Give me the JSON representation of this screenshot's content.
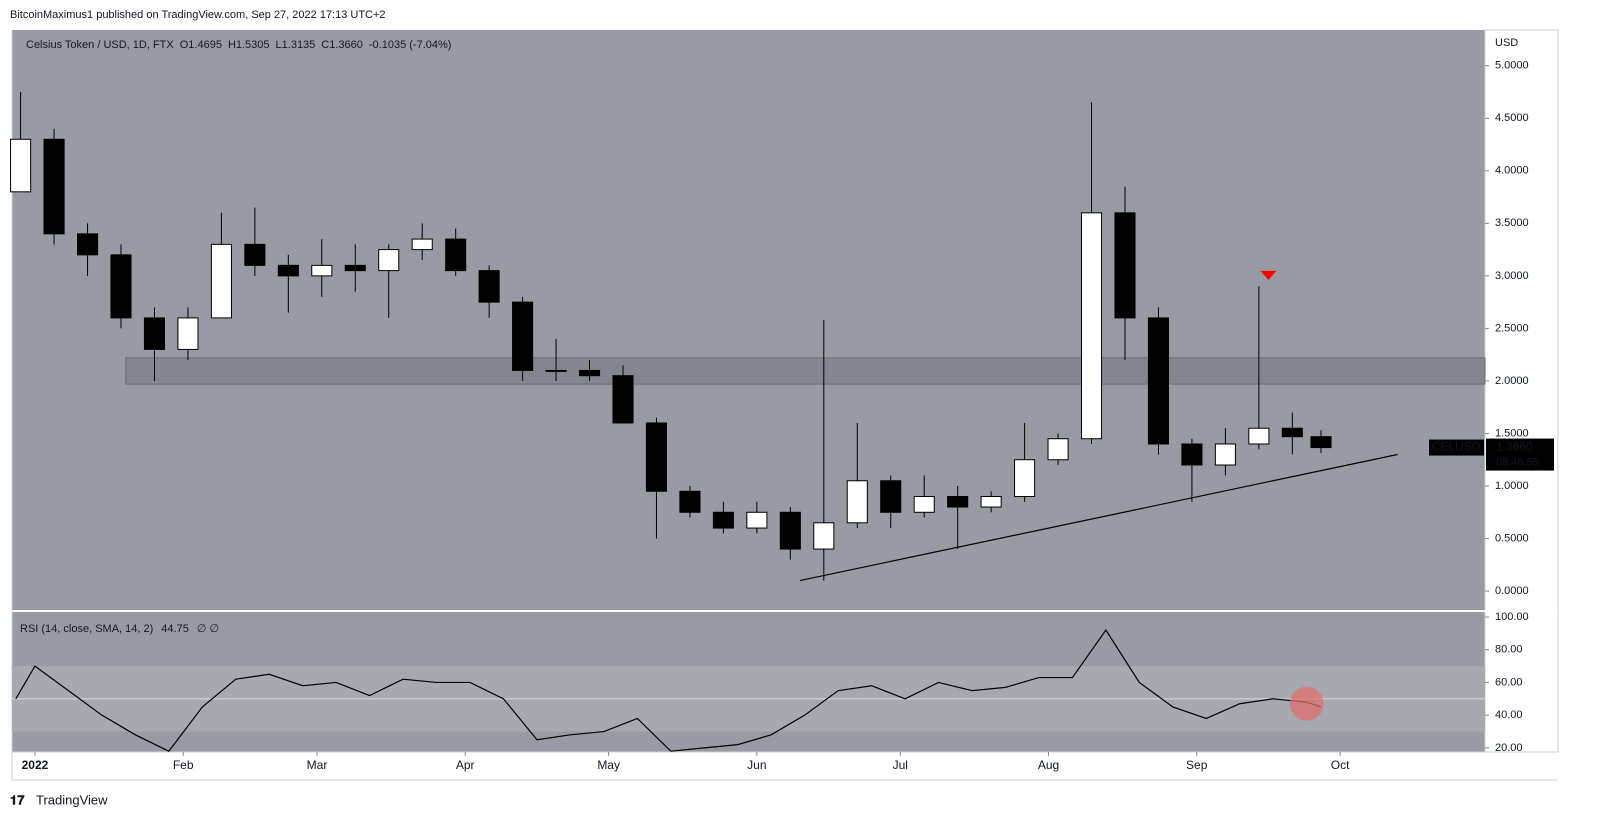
{
  "header": "BitcoinMaximus1 published on TradingView.com, Sep 27, 2022 17:13 UTC+2",
  "footer": "TradingView",
  "chart_data": [
    {
      "type": "candlestick",
      "legend": {
        "symbol": "Celsius Token / USD, 1D, FTX",
        "items": [
          "O1.4695",
          "H1.5305",
          "L1.3135",
          "C1.3660",
          "-0.1035 (-7.04%)"
        ]
      },
      "axis_label": "USD",
      "last_label": {
        "symbol": "CELUSD",
        "price": "1.3660",
        "countdown": "08:46:55"
      },
      "up_color": "#ffffff",
      "down_color": "#000000",
      "x": [
        -3,
        4,
        11,
        18,
        25,
        32,
        39,
        46,
        53,
        60,
        67,
        74,
        81,
        88,
        95,
        102,
        109,
        116,
        123,
        130,
        137,
        144,
        151,
        158,
        165,
        172,
        179,
        186,
        193,
        200,
        207,
        214,
        221,
        228,
        235,
        242,
        249,
        256,
        263,
        269
      ],
      "open": [
        3.8,
        4.3,
        3.4,
        3.2,
        2.6,
        2.3,
        2.6,
        3.3,
        3.1,
        3.0,
        3.1,
        3.05,
        3.25,
        3.35,
        3.05,
        2.75,
        2.1,
        2.1,
        2.05,
        1.6,
        0.95,
        0.75,
        0.6,
        0.75,
        0.4,
        0.65,
        1.05,
        0.75,
        0.9,
        0.8,
        0.9,
        1.25,
        1.45,
        3.6,
        2.6,
        1.4,
        1.2,
        1.4,
        1.55,
        1.4695
      ],
      "high": [
        4.75,
        4.4,
        3.5,
        3.3,
        2.7,
        2.7,
        3.6,
        3.65,
        3.2,
        3.35,
        3.3,
        3.3,
        3.5,
        3.45,
        3.1,
        2.8,
        2.4,
        2.2,
        2.15,
        1.65,
        1.0,
        0.85,
        0.85,
        0.8,
        2.58,
        1.6,
        1.1,
        1.1,
        1.0,
        0.95,
        1.6,
        1.5,
        4.65,
        3.85,
        2.7,
        1.45,
        1.55,
        2.9,
        1.7,
        1.5305
      ],
      "low": [
        3.8,
        3.3,
        3.0,
        2.5,
        2.0,
        2.2,
        2.6,
        3.0,
        2.65,
        2.8,
        2.85,
        2.6,
        3.15,
        3.0,
        2.6,
        2.0,
        2.0,
        2.0,
        1.6,
        0.5,
        0.7,
        0.55,
        0.55,
        0.3,
        0.1,
        0.6,
        0.6,
        0.7,
        0.4,
        0.75,
        0.85,
        1.2,
        1.4,
        2.2,
        1.3,
        0.85,
        1.1,
        1.35,
        1.3,
        1.3135
      ],
      "close": [
        4.3,
        3.4,
        3.2,
        2.6,
        2.3,
        2.6,
        3.3,
        3.1,
        3.0,
        3.1,
        3.05,
        3.25,
        3.35,
        3.05,
        2.75,
        2.1,
        2.1,
        2.05,
        1.6,
        0.95,
        0.75,
        0.6,
        0.75,
        0.4,
        0.65,
        1.05,
        0.75,
        0.9,
        0.8,
        0.9,
        1.25,
        1.45,
        3.6,
        2.6,
        1.4,
        1.2,
        1.4,
        1.55,
        1.4695,
        1.366
      ],
      "zone": [
        1.97,
        2.22
      ],
      "zone_start": 19,
      "trendline": {
        "x": [
          160,
          285
        ],
        "y": [
          0.1,
          1.3
        ]
      },
      "marker": {
        "x": 258,
        "y": 3.0,
        "color": "#ff0000"
      },
      "xlim": [
        -4.8,
        303.3
      ],
      "ylim": [
        -0.18,
        5.34
      ],
      "yticks": [
        {
          "value": 0,
          "label": "0.0000"
        },
        {
          "value": 0.5,
          "label": "0.5000"
        },
        {
          "value": 1,
          "label": "1.0000"
        },
        {
          "value": 1.5,
          "label": "1.5000"
        },
        {
          "value": 2,
          "label": "2.0000"
        },
        {
          "value": 2.5,
          "label": "2.5000"
        },
        {
          "value": 3,
          "label": "3.0000"
        },
        {
          "value": 3.5,
          "label": "3.5000"
        },
        {
          "value": 4,
          "label": "4.0000"
        },
        {
          "value": 4.5,
          "label": "4.5000"
        },
        {
          "value": 5,
          "label": "5.0000"
        }
      ],
      "xticks": [
        {
          "value": 0,
          "label": "2022"
        },
        {
          "value": 31,
          "label": "Feb"
        },
        {
          "value": 59,
          "label": "Mar"
        },
        {
          "value": 90,
          "label": "Apr"
        },
        {
          "value": 120,
          "label": "May"
        },
        {
          "value": 151,
          "label": "Jun"
        },
        {
          "value": 181,
          "label": "Jul"
        },
        {
          "value": 212,
          "label": "Aug"
        },
        {
          "value": 243,
          "label": "Sep"
        },
        {
          "value": 273,
          "label": "Oct"
        }
      ]
    },
    {
      "type": "line",
      "title": "RSI (14, close, SMA, 14, 2)",
      "last_value": "44.75",
      "flags": "∅ ∅",
      "color": "#000000",
      "x": [
        -4,
        0,
        7,
        14,
        21,
        28,
        35,
        42,
        49,
        56,
        63,
        70,
        77,
        84,
        91,
        98,
        105,
        112,
        119,
        126,
        133,
        140,
        147,
        154,
        161,
        168,
        175,
        182,
        189,
        196,
        203,
        210,
        217,
        224,
        231,
        238,
        245,
        252,
        259,
        266,
        269
      ],
      "values": [
        50,
        70,
        55,
        40,
        28,
        18,
        45,
        62,
        65,
        58,
        60,
        52,
        62,
        60,
        60,
        50,
        25,
        28,
        30,
        38,
        18,
        20,
        22,
        28,
        40,
        55,
        58,
        50,
        60,
        55,
        57,
        63,
        63,
        92,
        60,
        45,
        38,
        47,
        50,
        48,
        45
      ],
      "band": [
        30,
        70
      ],
      "midline": 50,
      "highlight": {
        "x": 266,
        "y": 47,
        "color": "#e0706f"
      },
      "xlim": [
        -4.8,
        303.3
      ],
      "ylim": [
        17.5,
        100
      ],
      "yticks": [
        {
          "value": 20,
          "label": "20.00"
        },
        {
          "value": 40,
          "label": "40.00"
        },
        {
          "value": 60,
          "label": "60.00"
        },
        {
          "value": 80,
          "label": "80.00"
        },
        {
          "value": 100,
          "label": "100.00"
        }
      ]
    }
  ]
}
